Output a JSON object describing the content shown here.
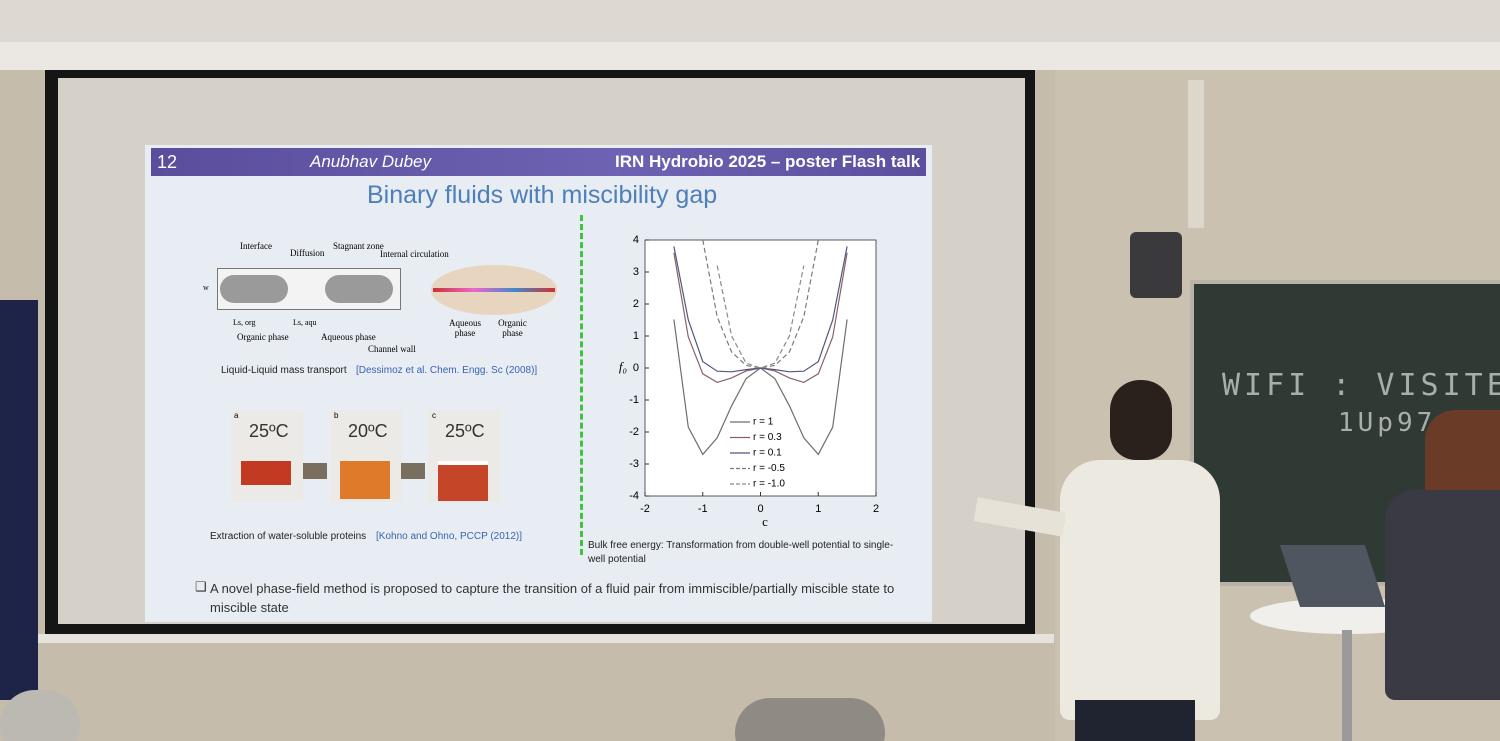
{
  "slide": {
    "number": "12",
    "author": "Anubhav Dubey",
    "event": "IRN Hydrobio 2025 – poster Flash talk",
    "title": "Binary fluids with miscibility gap",
    "figure1": {
      "interface": "Interface",
      "diffusion": "Diffusion",
      "stagnant": "Stagnant zone",
      "circulation": "Internal circulation",
      "w": "w",
      "ls_org": "Ls, org",
      "ls_aqu": "Ls, aqu",
      "organic": "Organic phase",
      "aqueous": "Aqueous phase",
      "wall": "Channel wall",
      "aqueous2": "Aqueous phase",
      "organic2": "Organic phase"
    },
    "caption1": "Liquid-Liquid mass transport",
    "cite1": "[Dessimoz et al. Chem. Engg. Sc (2008)]",
    "vials": [
      {
        "letter": "a",
        "temp": "25ºC"
      },
      {
        "letter": "b",
        "temp": "20ºC"
      },
      {
        "letter": "c",
        "temp": "25ºC"
      }
    ],
    "caption2": "Extraction of water-soluble proteins",
    "cite2": "[Kohno and Ohno, PCCP (2012)]",
    "caption3": "Bulk free energy: Transformation from double-well potential to single-well potential",
    "bullet": "A novel phase-field method is proposed to capture the transition of a fluid pair from immiscible/partially miscible state to miscible state"
  },
  "whiteboard": {
    "line1": "WIFI : VISITEUR",
    "line2": "1Up97"
  },
  "chart_data": {
    "type": "line",
    "xlabel": "c",
    "ylabel": "f₀",
    "x": [
      -1.5,
      -1.25,
      -1,
      -0.75,
      -0.5,
      -0.25,
      0,
      0.25,
      0.5,
      0.75,
      1,
      1.25,
      1.5
    ],
    "series": [
      {
        "name": "r = 1",
        "color": "#6e6e6e",
        "dash": false,
        "values": [
          1.52,
          -1.85,
          -2.7,
          -2.18,
          -1.18,
          -0.33,
          0,
          -0.33,
          -1.18,
          -2.18,
          -2.7,
          -1.85,
          1.52
        ]
      },
      {
        "name": "r = 0.3",
        "color": "#8a5f6e",
        "dash": false,
        "values": [
          3.6,
          0.97,
          -0.18,
          -0.45,
          -0.31,
          -0.09,
          0,
          -0.09,
          -0.31,
          -0.45,
          -0.18,
          0.97,
          3.6
        ]
      },
      {
        "name": "r = 0.1",
        "color": "#55557e",
        "dash": false,
        "values": [
          3.8,
          1.5,
          0.2,
          -0.1,
          -0.12,
          -0.05,
          0,
          -0.05,
          -0.12,
          -0.1,
          0.2,
          1.5,
          3.8
        ]
      },
      {
        "name": "r = -0.5",
        "color": "#7a7a7a",
        "dash": true,
        "values": [
          null,
          null,
          4,
          1.6,
          0.5,
          0.08,
          0,
          0.08,
          0.5,
          1.6,
          4,
          null,
          null
        ]
      },
      {
        "name": "r = -1.0",
        "color": "#8a8a8a",
        "dash": true,
        "values": [
          null,
          null,
          null,
          3.2,
          1.0,
          0.15,
          0,
          0.15,
          1.0,
          3.2,
          null,
          null,
          null
        ]
      }
    ],
    "xlim": [
      -2,
      2
    ],
    "xticks": [
      -2,
      -1,
      0,
      1,
      2
    ],
    "ylim": [
      -4,
      4
    ],
    "yticks": [
      -4,
      -3,
      -2,
      -1,
      0,
      1,
      2,
      3,
      4
    ]
  }
}
